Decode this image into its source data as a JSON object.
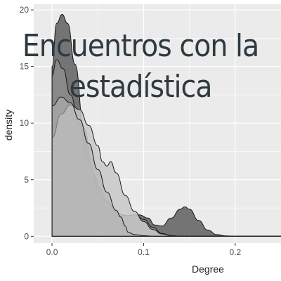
{
  "overlay": {
    "line1": "Encuentros con la",
    "line2": "estadística"
  },
  "chart_data": {
    "type": "area",
    "title": "",
    "xlabel": "Degree",
    "ylabel": "density",
    "xlim": [
      -0.02,
      0.25
    ],
    "ylim": [
      -0.6,
      20.5
    ],
    "x_ticks": [
      0.0,
      0.1,
      0.2
    ],
    "x_tick_labels": [
      "0.0",
      "0.1",
      "0.2"
    ],
    "y_ticks": [
      0,
      5,
      10,
      15,
      20
    ],
    "y_tick_labels": [
      "0",
      "5",
      "10",
      "15",
      "20"
    ],
    "grid": true,
    "legend": "none",
    "panel_background": "#ebebeb",
    "grid_color": "#ffffff",
    "series": [
      {
        "fill": "#6e6e6e",
        "opacity": 0.95,
        "points": [
          [
            0.0,
            15.0
          ],
          [
            0.005,
            18.8
          ],
          [
            0.011,
            19.6
          ],
          [
            0.017,
            18.8
          ],
          [
            0.025,
            15.2
          ],
          [
            0.035,
            9.5
          ],
          [
            0.045,
            5.5
          ],
          [
            0.055,
            3.4
          ],
          [
            0.065,
            2.4
          ],
          [
            0.075,
            1.9
          ],
          [
            0.085,
            1.8
          ],
          [
            0.095,
            1.9
          ],
          [
            0.105,
            1.6
          ],
          [
            0.112,
            1.0
          ],
          [
            0.12,
            0.9
          ],
          [
            0.13,
            1.6
          ],
          [
            0.14,
            2.4
          ],
          [
            0.145,
            2.6
          ],
          [
            0.15,
            2.4
          ],
          [
            0.16,
            1.4
          ],
          [
            0.17,
            0.55
          ],
          [
            0.18,
            0.15
          ],
          [
            0.19,
            0.03
          ],
          [
            0.2,
            0.0
          ]
        ]
      },
      {
        "fill": "#8c8c8c",
        "opacity": 0.9,
        "points": [
          [
            0.0,
            14.2
          ],
          [
            0.005,
            15.6
          ],
          [
            0.012,
            14.8
          ],
          [
            0.02,
            12.5
          ],
          [
            0.03,
            9.8
          ],
          [
            0.04,
            6.6
          ],
          [
            0.05,
            4.4
          ],
          [
            0.06,
            3.1
          ],
          [
            0.07,
            2.1
          ],
          [
            0.08,
            1.8
          ],
          [
            0.09,
            1.9
          ],
          [
            0.1,
            1.5
          ],
          [
            0.11,
            0.8
          ],
          [
            0.12,
            0.25
          ],
          [
            0.13,
            0.06
          ],
          [
            0.14,
            0.0
          ]
        ]
      },
      {
        "fill": "#c8c8c8",
        "opacity": 0.85,
        "points": [
          [
            0.0,
            8.7
          ],
          [
            0.01,
            10.8
          ],
          [
            0.02,
            11.6
          ],
          [
            0.03,
            11.2
          ],
          [
            0.04,
            9.8
          ],
          [
            0.05,
            8.0
          ],
          [
            0.055,
            6.6
          ],
          [
            0.06,
            6.2
          ],
          [
            0.064,
            6.6
          ],
          [
            0.07,
            5.6
          ],
          [
            0.08,
            3.6
          ],
          [
            0.09,
            2.2
          ],
          [
            0.1,
            1.3
          ],
          [
            0.11,
            0.6
          ],
          [
            0.12,
            0.2
          ],
          [
            0.13,
            0.05
          ],
          [
            0.14,
            0.0
          ]
        ]
      },
      {
        "fill": "#b3b3b3",
        "opacity": 0.6,
        "points": [
          [
            0.0,
            11.5
          ],
          [
            0.01,
            12.3
          ],
          [
            0.02,
            11.8
          ],
          [
            0.03,
            10.3
          ],
          [
            0.04,
            8.2
          ],
          [
            0.05,
            5.9
          ],
          [
            0.06,
            3.9
          ],
          [
            0.07,
            2.3
          ],
          [
            0.075,
            1.7
          ],
          [
            0.08,
            0.9
          ],
          [
            0.083,
            0.35
          ],
          [
            0.09,
            0.15
          ],
          [
            0.1,
            0.05
          ],
          [
            0.11,
            0.0
          ]
        ]
      }
    ]
  }
}
